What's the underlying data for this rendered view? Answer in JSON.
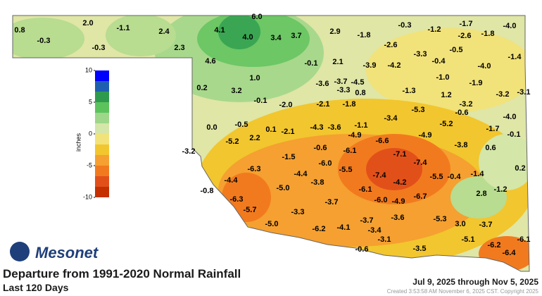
{
  "logo": "Mesonet",
  "title": "Departure from 1991-2020 Normal Rainfall",
  "subtitle": "Last 120 Days",
  "period": "Jul 9, 2025 through Nov 5, 2025",
  "created": "Created 3:53:58 AM November 6, 2025 CST. Copyright 2025",
  "colorbar": {
    "label": "inches",
    "ticks": [
      10,
      5,
      0,
      -5,
      -10
    ],
    "colors": [
      "#0000ff",
      "#1f5fb0",
      "#2e9a4e",
      "#5cc35c",
      "#9ed68a",
      "#d4e6a8",
      "#f1e27a",
      "#f2c62e",
      "#f5a030",
      "#f27a1e",
      "#e2501a",
      "#c43000"
    ]
  },
  "stations": [
    "0.8",
    "-0.3",
    "2.0",
    "-0.3",
    "-1.1",
    "2.4",
    "2.3",
    "4.1",
    "6.0",
    "4.0",
    "3.4",
    "3.7",
    "2.9",
    "-1.8",
    "-0.3",
    "-1.2",
    "-1.7",
    "-2.6",
    "-1.8",
    "-4.0",
    "-2.6",
    "-0.5",
    "-1.4",
    "4.6",
    "-0.1",
    "2.1",
    "-3.9",
    "-4.2",
    "-3.3",
    "-0.4",
    "-4.0",
    "1.0",
    "-3.6",
    "-3.7",
    "-4.5",
    "-3.3",
    "0.8",
    "-1.3",
    "-1.0",
    "-1.9",
    "0.2",
    "3.2",
    "-0.1",
    "-2.0",
    "-2.1",
    "-1.8",
    "1.2",
    "-3.2",
    "-3.2",
    "-3.1",
    "-0.6",
    "-5.3",
    "-3.4",
    "-4.0",
    "0.0",
    "-0.5",
    "-5.2",
    "2.2",
    "0.1",
    "-2.1",
    "-4.3",
    "-3.6",
    "-1.1",
    "-4.9",
    "-5.2",
    "-1.7",
    "-0.1",
    "-4.9",
    "-6.6",
    "-3.8",
    "0.6",
    "-3.2",
    "-1.5",
    "-0.6",
    "-6.1",
    "-7.1",
    "-7.4",
    "-6.0",
    "-6.3",
    "-4.4",
    "-5.5",
    "-7.4",
    "-4.2",
    "-5.5",
    "-0.4",
    "-1.4",
    "0.2",
    "-4.4",
    "-5.0",
    "-3.8",
    "-6.1",
    "2.8",
    "-1.2",
    "-0.8",
    "-6.3",
    "-3.7",
    "-6.0",
    "-4.9",
    "-6.7",
    "-5.7",
    "-3.3",
    "-3.7",
    "-3.6",
    "-5.3",
    "3.0",
    "-3.7",
    "-5.0",
    "-6.2",
    "-4.1",
    "-3.4",
    "-3.1",
    "-5.1",
    "-6.1",
    "-0.6",
    "-3.5",
    "-6.2",
    "-6.4"
  ]
}
